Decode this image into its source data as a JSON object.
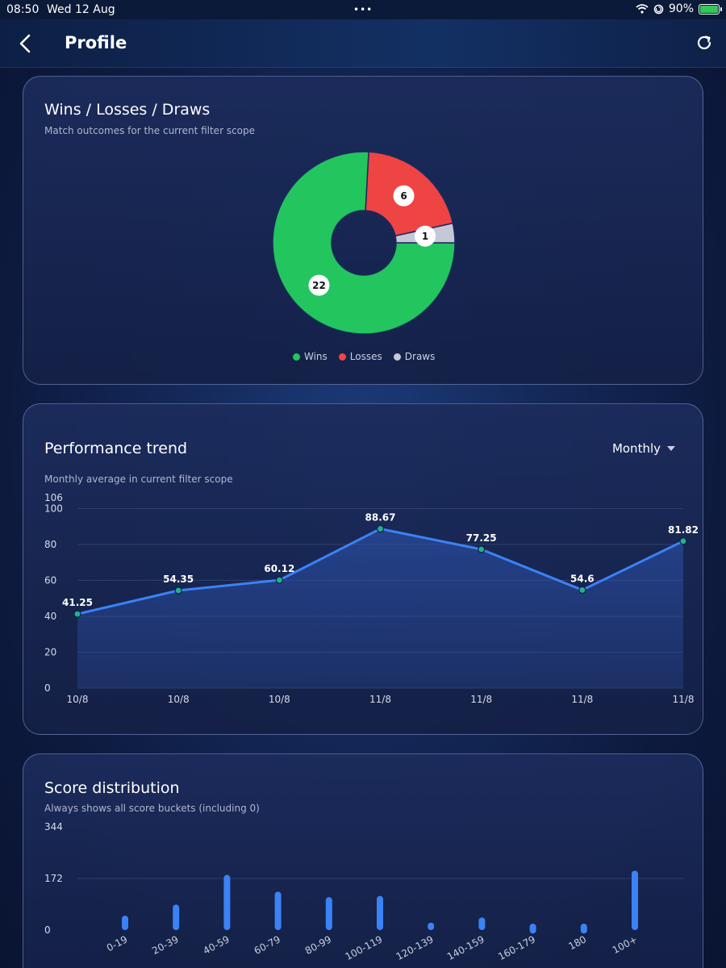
{
  "status_bar": {
    "time": "08:50",
    "date": "Wed 12 Aug",
    "battery": "90%",
    "icons": [
      "wifi-icon",
      "location-lock-icon",
      "battery-charging-icon"
    ]
  },
  "header": {
    "title": "Profile",
    "back_icon": "chevron-left-icon",
    "refresh_icon": "refresh-icon"
  },
  "outcomes_card": {
    "title": "Wins / Losses / Draws",
    "subtitle": "Match outcomes for the current filter scope",
    "legend": [
      {
        "label": "Wins",
        "color": "#22c55e"
      },
      {
        "label": "Losses",
        "color": "#ef4444"
      },
      {
        "label": "Draws",
        "color": "#c5c8d6"
      }
    ]
  },
  "trend_card": {
    "title": "Performance trend",
    "subtitle": "Monthly average in current filter scope",
    "period_selector": "Monthly"
  },
  "scores_card": {
    "title": "Score distribution",
    "subtitle": "Always shows all score buckets (including 0)"
  },
  "chart_data": [
    {
      "type": "pie",
      "variant": "donut",
      "categories": [
        "Wins",
        "Losses",
        "Draws"
      ],
      "values": [
        22,
        6,
        1
      ],
      "colors": [
        "#22c55e",
        "#ef4444",
        "#c5c8d6"
      ],
      "legend": "bottom-center"
    },
    {
      "type": "area",
      "categories": [
        "10/8",
        "10/8",
        "10/8",
        "11/8",
        "11/8",
        "11/8",
        "11/8"
      ],
      "values": [
        41.25,
        54.35,
        60.12,
        88.67,
        77.25,
        54.6,
        81.82
      ],
      "ylim": [
        0,
        106
      ],
      "yticks": [
        0,
        20,
        40,
        60,
        80,
        100,
        106
      ],
      "line_color": "#3b82f6",
      "grid": true
    },
    {
      "type": "bar",
      "categories": [
        "0-19",
        "20-39",
        "40-59",
        "60-79",
        "80-99",
        "100-119",
        "120-139",
        "140-159",
        "160-179",
        "180",
        "100+"
      ],
      "values": [
        48,
        85,
        184,
        128,
        110,
        114,
        25,
        42,
        10,
        10,
        198
      ],
      "ylim": [
        0,
        344
      ],
      "yticks": [
        0,
        172,
        344
      ],
      "color": "#3b82f6",
      "grid": true
    }
  ]
}
